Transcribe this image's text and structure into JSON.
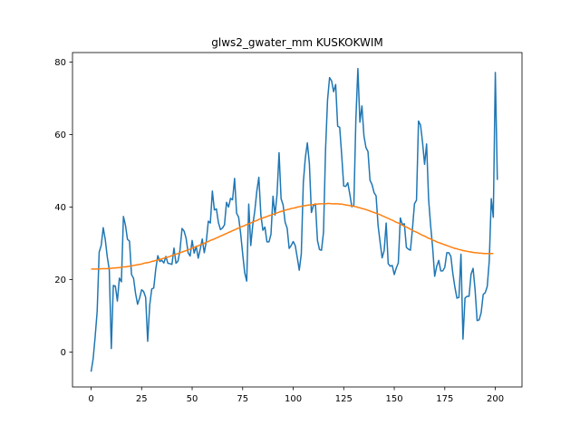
{
  "chart_data": {
    "type": "line",
    "title": "glws2_gwater_mm KUSKOKWIM",
    "xlabel": "",
    "ylabel": "",
    "xlim": [
      -9.2,
      213.2
    ],
    "ylim": [
      -9.6,
      82.6
    ],
    "xticks": [
      0,
      25,
      50,
      75,
      100,
      125,
      150,
      175,
      200
    ],
    "yticks": [
      0,
      20,
      40,
      60,
      80
    ],
    "grid": false,
    "colors": {
      "series_0": "#1f77b4",
      "series_1": "#ff7f0e"
    },
    "series": [
      {
        "values": [
          -5.4,
          -1.9,
          4.2,
          11.2,
          27.6,
          29.4,
          34.3,
          31.1,
          26.3,
          22.7,
          1.0,
          18.4,
          18.2,
          14.1,
          20.4,
          19.4,
          37.4,
          35.0,
          31.1,
          30.6,
          21.4,
          20.4,
          16.2,
          13.2,
          14.9,
          17.2,
          16.7,
          15.1,
          3.0,
          12.9,
          17.4,
          17.7,
          22.9,
          26.6,
          25.0,
          25.3,
          24.6,
          26.4,
          24.5,
          24.4,
          24.2,
          28.7,
          24.5,
          25.1,
          28.2,
          34.1,
          33.4,
          31.4,
          27.4,
          26.5,
          30.8,
          27.3,
          29.2,
          25.9,
          28.4,
          31.2,
          27.4,
          30.5,
          36.1,
          35.6,
          44.4,
          39.2,
          39.5,
          35.7,
          33.8,
          34.2,
          35.1,
          41.3,
          40.0,
          42.4,
          42.0,
          47.9,
          38.3,
          37.2,
          32.7,
          27.1,
          21.9,
          19.6,
          40.8,
          29.4,
          35.1,
          39.0,
          44.4,
          48.2,
          37.8,
          33.6,
          34.5,
          30.4,
          30.4,
          32.5,
          43.0,
          37.8,
          43.5,
          55.0,
          42.3,
          40.6,
          35.8,
          34.2,
          28.6,
          29.4,
          30.5,
          29.4,
          26.1,
          22.6,
          27.1,
          46.7,
          53.6,
          57.7,
          52.0,
          38.5,
          40.4,
          40.9,
          30.8,
          28.3,
          28.1,
          33.1,
          55.8,
          69.6,
          75.7,
          74.8,
          71.8,
          73.8,
          62.3,
          62.0,
          54.3,
          45.8,
          45.7,
          46.7,
          43.6,
          40.1,
          40.5,
          64.2,
          78.2,
          63.4,
          67.9,
          59.6,
          56.4,
          55.3,
          47.4,
          46.2,
          44.0,
          43.1,
          34.9,
          30.3,
          26.0,
          28.0,
          35.6,
          24.4,
          23.7,
          23.9,
          21.4,
          23.2,
          24.6,
          37.0,
          35.2,
          35.4,
          28.9,
          28.4,
          28.1,
          34.0,
          40.9,
          41.9,
          63.7,
          62.6,
          57.8,
          51.8,
          57.4,
          42.1,
          34.9,
          28.8,
          20.9,
          23.7,
          25.3,
          22.4,
          22.4,
          23.4,
          27.4,
          27.4,
          26.4,
          21.6,
          17.9,
          14.9,
          15.1,
          27.0,
          3.6,
          14.9,
          15.4,
          15.4,
          21.5,
          23.1,
          17.1,
          8.7,
          8.9,
          10.9,
          15.9,
          16.4,
          18.1,
          25.1,
          42.3,
          37.2,
          77.1,
          47.5
        ]
      },
      {
        "values": [
          22.9,
          22.9,
          22.9,
          22.9,
          22.9,
          23.0,
          23.0,
          23.0,
          23.0,
          23.1,
          23.1,
          23.2,
          23.2,
          23.3,
          23.3,
          23.4,
          23.5,
          23.5,
          23.6,
          23.7,
          23.8,
          23.9,
          24.0,
          24.1,
          24.2,
          24.3,
          24.5,
          24.6,
          24.7,
          24.8,
          25.0,
          25.1,
          25.3,
          25.4,
          25.6,
          25.7,
          25.9,
          26.1,
          26.2,
          26.4,
          26.6,
          26.8,
          27.0,
          27.2,
          27.4,
          27.6,
          27.8,
          28.0,
          28.2,
          28.4,
          28.7,
          28.9,
          29.1,
          29.3,
          29.6,
          29.8,
          30.0,
          30.3,
          30.5,
          30.8,
          31.0,
          31.2,
          31.5,
          31.7,
          32.0,
          32.2,
          32.5,
          32.7,
          33.0,
          33.2,
          33.5,
          33.7,
          34.0,
          34.2,
          34.5,
          34.7,
          34.9,
          35.2,
          35.4,
          35.6,
          35.9,
          36.1,
          36.3,
          36.6,
          36.8,
          37.0,
          37.2,
          37.4,
          37.6,
          37.8,
          38.0,
          38.2,
          38.4,
          38.6,
          38.8,
          38.9,
          39.1,
          39.3,
          39.4,
          39.6,
          39.7,
          39.8,
          40.0,
          40.1,
          40.2,
          40.3,
          40.4,
          40.5,
          40.6,
          40.6,
          40.7,
          40.8,
          40.8,
          40.9,
          40.9,
          40.9,
          40.9,
          41.0,
          41.0,
          40.9,
          40.9,
          40.9,
          40.9,
          40.8,
          40.8,
          40.7,
          40.6,
          40.5,
          40.4,
          40.3,
          40.2,
          40.1,
          39.9,
          39.8,
          39.6,
          39.5,
          39.3,
          39.1,
          38.9,
          38.7,
          38.5,
          38.3,
          38.1,
          37.9,
          37.6,
          37.4,
          37.1,
          36.9,
          36.6,
          36.4,
          36.1,
          35.8,
          35.6,
          35.3,
          35.0,
          34.7,
          34.5,
          34.2,
          33.9,
          33.6,
          33.3,
          33.1,
          32.8,
          32.5,
          32.2,
          32.0,
          31.7,
          31.4,
          31.2,
          30.9,
          30.7,
          30.4,
          30.2,
          30.0,
          29.8,
          29.6,
          29.4,
          29.2,
          29.0,
          28.8,
          28.6,
          28.5,
          28.3,
          28.2,
          28.0,
          27.9,
          27.8,
          27.7,
          27.6,
          27.5,
          27.4,
          27.4,
          27.3,
          27.3,
          27.2,
          27.2,
          27.2,
          27.2,
          27.2,
          27.2
        ]
      }
    ]
  }
}
